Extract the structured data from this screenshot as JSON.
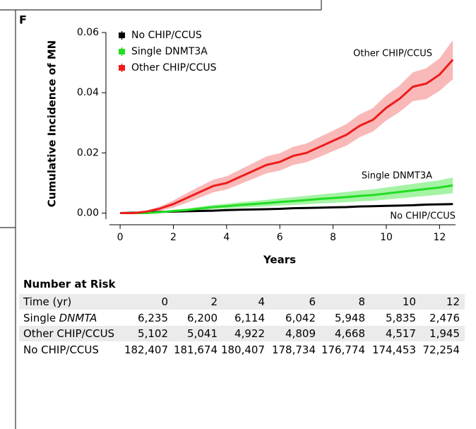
{
  "panel_label": "F",
  "chart_data": {
    "type": "line",
    "ylabel": "Cumulative Incidence of MN",
    "xlabel": "Years",
    "xlim": [
      -0.4,
      12.6
    ],
    "ylim": [
      -0.002,
      0.06
    ],
    "xticks": [
      0,
      2,
      4,
      6,
      8,
      10,
      12
    ],
    "yticks": [
      {
        "value": 0,
        "label": "0.00"
      },
      {
        "value": 0.02,
        "label": "0.02"
      },
      {
        "value": 0.04,
        "label": "0.04"
      },
      {
        "value": 0.06,
        "label": "0.06"
      }
    ],
    "legend": "upper left",
    "x": [
      0,
      0.5,
      1,
      1.5,
      2,
      2.5,
      3,
      3.5,
      4,
      4.5,
      5,
      5.5,
      6,
      6.5,
      7,
      7.5,
      8,
      8.5,
      9,
      9.5,
      10,
      10.5,
      11,
      11.5,
      12,
      12.5
    ],
    "series": [
      {
        "name": "No CHIP/CCUS",
        "color": "#000000",
        "band_color": "#555555",
        "values": [
          0,
          0.0001,
          0.0002,
          0.0004,
          0.0005,
          0.0006,
          0.0007,
          0.0008,
          0.001,
          0.0011,
          0.0012,
          0.0013,
          0.0014,
          0.0016,
          0.0017,
          0.0018,
          0.0019,
          0.002,
          0.0022,
          0.0023,
          0.0024,
          0.0025,
          0.0026,
          0.0028,
          0.0029,
          0.003
        ],
        "lower": [
          0,
          0.0001,
          0.0002,
          0.0003,
          0.0004,
          0.0005,
          0.0006,
          0.0007,
          0.0009,
          0.001,
          0.0011,
          0.0012,
          0.0013,
          0.0015,
          0.0016,
          0.0017,
          0.0018,
          0.0019,
          0.002,
          0.0021,
          0.0022,
          0.0023,
          0.0024,
          0.0026,
          0.0027,
          0.0027
        ],
        "upper": [
          0,
          0.0001,
          0.0002,
          0.0005,
          0.0006,
          0.0007,
          0.0008,
          0.0009,
          0.0011,
          0.0012,
          0.0013,
          0.0014,
          0.0015,
          0.0017,
          0.0018,
          0.0019,
          0.002,
          0.0021,
          0.0024,
          0.0025,
          0.0026,
          0.0027,
          0.0028,
          0.003,
          0.0031,
          0.0033
        ]
      },
      {
        "name": "Single DNMT3A",
        "color": "#22dd22",
        "band_color": "#8ef08e",
        "values": [
          0,
          0,
          0,
          0.0003,
          0.0007,
          0.001,
          0.0015,
          0.002,
          0.0023,
          0.0027,
          0.003,
          0.0033,
          0.0037,
          0.004,
          0.0043,
          0.0047,
          0.005,
          0.0053,
          0.0057,
          0.006,
          0.0065,
          0.007,
          0.0075,
          0.008,
          0.0085,
          0.0092
        ],
        "lower": [
          0,
          0,
          0,
          0.0001,
          0.0003,
          0.0005,
          0.0009,
          0.0013,
          0.0015,
          0.0018,
          0.002,
          0.0022,
          0.0025,
          0.0027,
          0.0029,
          0.0032,
          0.0034,
          0.0036,
          0.0039,
          0.0041,
          0.0045,
          0.0049,
          0.0053,
          0.0057,
          0.0061,
          0.0066
        ],
        "upper": [
          0,
          0,
          0,
          0.0006,
          0.0011,
          0.0015,
          0.0021,
          0.0027,
          0.0031,
          0.0036,
          0.004,
          0.0044,
          0.0049,
          0.0053,
          0.0057,
          0.0062,
          0.0066,
          0.007,
          0.0075,
          0.0079,
          0.0085,
          0.0091,
          0.0097,
          0.0103,
          0.0109,
          0.0118
        ]
      },
      {
        "name": "Other CHIP/CCUS",
        "color": "#ee1c1c",
        "band_color": "#f7a8a8",
        "values": [
          0,
          0,
          0.0005,
          0.0015,
          0.003,
          0.005,
          0.007,
          0.009,
          0.01,
          0.012,
          0.014,
          0.016,
          0.017,
          0.019,
          0.02,
          0.022,
          0.024,
          0.026,
          0.029,
          0.031,
          0.035,
          0.038,
          0.042,
          0.043,
          0.046,
          0.051
        ],
        "lower": [
          0,
          0,
          0.0002,
          0.0008,
          0.0018,
          0.0034,
          0.0051,
          0.0069,
          0.0078,
          0.0096,
          0.0114,
          0.0132,
          0.0141,
          0.016,
          0.0169,
          0.0187,
          0.0206,
          0.0224,
          0.0252,
          0.0271,
          0.0308,
          0.0336,
          0.0372,
          0.0379,
          0.0406,
          0.0445
        ],
        "upper": [
          0,
          0,
          0.0008,
          0.0022,
          0.0042,
          0.0066,
          0.0089,
          0.0111,
          0.0122,
          0.0144,
          0.0166,
          0.0188,
          0.0199,
          0.022,
          0.0231,
          0.0253,
          0.0274,
          0.0296,
          0.0328,
          0.0349,
          0.0392,
          0.0424,
          0.0468,
          0.0481,
          0.0514,
          0.0575
        ]
      }
    ]
  },
  "table": {
    "title": "Number at Risk",
    "header": [
      "Time (yr)",
      "0",
      "2",
      "4",
      "6",
      "8",
      "10",
      "12"
    ],
    "rows": [
      {
        "label": [
          "Single",
          "DNMTA"
        ],
        "cells": [
          "6,235",
          "6,200",
          "6,114",
          "6,042",
          "5,948",
          "5,835",
          "2,476"
        ]
      },
      {
        "label": [
          "Other CHIP/CCUS"
        ],
        "cells": [
          "5,102",
          "5,041",
          "4,922",
          "4,809",
          "4,668",
          "4,517",
          "1,945"
        ]
      },
      {
        "label": [
          "No CHIP/CCUS"
        ],
        "cells": [
          "182,407",
          "181,674",
          "180,407",
          "178,734",
          "176,774",
          "174,453",
          "72,254"
        ]
      }
    ]
  }
}
